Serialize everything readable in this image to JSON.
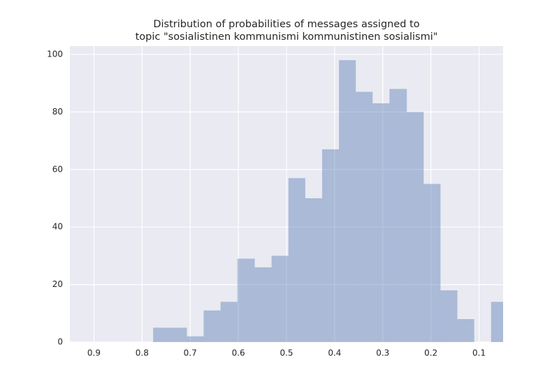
{
  "chart_data": {
    "type": "histogram",
    "title": [
      "Distribution of probabilities of messages assigned to",
      "topic \"sosialistinen kommunismi kommunistinen sosialismi\""
    ],
    "bins": [
      0.777,
      0.742,
      0.707,
      0.672,
      0.637,
      0.602,
      0.566,
      0.531,
      0.496,
      0.461,
      0.426,
      0.391,
      0.356,
      0.321,
      0.286,
      0.25,
      0.215,
      0.18,
      0.145,
      0.11,
      0.075,
      0.04
    ],
    "values": [
      5,
      5,
      2,
      11,
      14,
      29,
      26,
      30,
      57,
      50,
      67,
      98,
      87,
      83,
      88,
      80,
      55,
      18,
      8,
      0,
      14
    ],
    "color": "#4c72b0",
    "xlim": [
      0.95,
      0.05
    ],
    "xticks": [
      0.9,
      0.8,
      0.7,
      0.6,
      0.5,
      0.4,
      0.3,
      0.2,
      0.1
    ],
    "ylim": [
      0,
      102.9
    ],
    "yticks": [
      0,
      20,
      40,
      60,
      80,
      100
    ],
    "grid": true
  }
}
